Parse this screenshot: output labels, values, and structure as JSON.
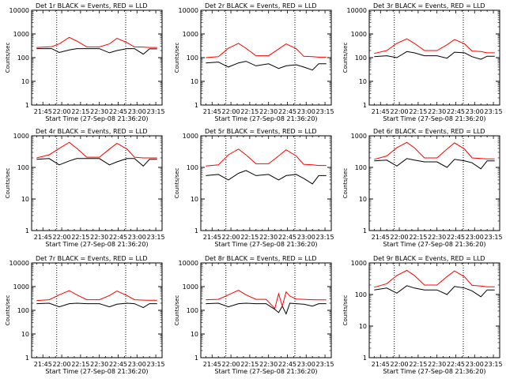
{
  "figure": {
    "panel_count": 9,
    "colors": {
      "events": "#000000",
      "lld": "#ff0000",
      "axes": "#000000",
      "background": "#ffffff"
    }
  },
  "chart_data": [
    {
      "type": "line",
      "title": "Det 1r BLACK = Events, RED = LLD",
      "xlabel": "Start Time (27-Sep-08 21:36:20)",
      "ylabel": "Counts/sec",
      "yscale": "log",
      "ylim": [
        1,
        10000
      ],
      "ytick_labels": [
        "1",
        "10",
        "100",
        "1000",
        "10000"
      ],
      "xlim": [
        "21:36",
        "23:20"
      ],
      "xtick_labels": [
        "21:45",
        "22:00",
        "22:15",
        "22:30",
        "22:45",
        "23:00",
        "23:15"
      ],
      "vlines": [
        "21:56",
        "22:51"
      ],
      "x": [
        "21:40",
        "21:52",
        "21:58",
        "22:06",
        "22:12",
        "22:20",
        "22:30",
        "22:38",
        "22:44",
        "22:52",
        "22:58",
        "23:05",
        "23:10",
        "23:16"
      ],
      "series": [
        {
          "name": "Events",
          "values": [
            240,
            240,
            165,
            210,
            240,
            240,
            240,
            160,
            200,
            240,
            240,
            140,
            235,
            235
          ]
        },
        {
          "name": "LLD",
          "values": [
            270,
            290,
            380,
            720,
            500,
            285,
            285,
            380,
            650,
            430,
            285,
            280,
            270,
            270
          ]
        }
      ]
    },
    {
      "type": "line",
      "title": "Det 2r BLACK = Events, RED = LLD",
      "xlabel": "Start Time (27-Sep-08 21:36:20)",
      "ylabel": "Counts/sec",
      "yscale": "log",
      "ylim": [
        1,
        10000
      ],
      "ytick_labels": [
        "1",
        "10",
        "100",
        "1000",
        "10000"
      ],
      "xlim": [
        "21:36",
        "23:20"
      ],
      "xtick_labels": [
        "21:45",
        "22:00",
        "22:15",
        "22:30",
        "22:45",
        "23:00",
        "23:15"
      ],
      "vlines": [
        "21:56",
        "22:51"
      ],
      "x": [
        "21:40",
        "21:50",
        "21:58",
        "22:06",
        "22:12",
        "22:20",
        "22:30",
        "22:38",
        "22:44",
        "22:52",
        "22:58",
        "23:05",
        "23:10",
        "23:16"
      ],
      "series": [
        {
          "name": "Events",
          "values": [
            60,
            65,
            40,
            60,
            70,
            45,
            55,
            35,
            45,
            50,
            40,
            30,
            55,
            55
          ]
        },
        {
          "name": "LLD",
          "values": [
            100,
            110,
            250,
            400,
            250,
            120,
            120,
            230,
            380,
            240,
            115,
            110,
            105,
            105
          ]
        }
      ]
    },
    {
      "type": "line",
      "title": "Det 3r BLACK = Events, RED = LLD",
      "xlabel": "Start Time (27-Sep-08 21:36:20)",
      "ylabel": "Counts/sec",
      "yscale": "log",
      "ylim": [
        1,
        10000
      ],
      "ytick_labels": [
        "1",
        "10",
        "100",
        "1000",
        "10000"
      ],
      "xlim": [
        "21:36",
        "23:20"
      ],
      "xtick_labels": [
        "21:45",
        "22:00",
        "22:15",
        "22:30",
        "22:45",
        "23:00",
        "23:15"
      ],
      "vlines": [
        "21:56",
        "22:51"
      ],
      "x": [
        "21:40",
        "21:50",
        "21:58",
        "22:06",
        "22:12",
        "22:20",
        "22:30",
        "22:38",
        "22:44",
        "22:52",
        "22:58",
        "23:05",
        "23:10",
        "23:16"
      ],
      "series": [
        {
          "name": "Events",
          "values": [
            110,
            120,
            100,
            180,
            160,
            120,
            120,
            95,
            170,
            160,
            110,
            85,
            115,
            115
          ]
        },
        {
          "name": "LLD",
          "values": [
            150,
            200,
            400,
            620,
            400,
            200,
            200,
            350,
            580,
            380,
            190,
            180,
            160,
            160
          ]
        }
      ]
    },
    {
      "type": "line",
      "title": "Det 4r BLACK = Events, RED = LLD",
      "xlabel": "Start Time (27-Sep-08 21:36:20)",
      "ylabel": "Counts/sec",
      "yscale": "log",
      "ylim": [
        1,
        1000
      ],
      "ytick_labels": [
        "1",
        "10",
        "100",
        "1000"
      ],
      "xlim": [
        "21:36",
        "23:20"
      ],
      "xtick_labels": [
        "21:45",
        "22:00",
        "22:15",
        "22:30",
        "22:45",
        "23:00",
        "23:15"
      ],
      "vlines": [
        "21:56",
        "22:51"
      ],
      "x": [
        "21:40",
        "21:50",
        "21:58",
        "22:06",
        "22:12",
        "22:20",
        "22:30",
        "22:38",
        "22:44",
        "22:52",
        "22:58",
        "23:05",
        "23:10",
        "23:16"
      ],
      "series": [
        {
          "name": "Events",
          "values": [
            180,
            190,
            120,
            160,
            190,
            190,
            190,
            120,
            150,
            190,
            190,
            110,
            180,
            180
          ]
        },
        {
          "name": "LLD",
          "values": [
            200,
            250,
            400,
            620,
            400,
            210,
            210,
            380,
            580,
            380,
            210,
            200,
            200,
            200
          ]
        }
      ]
    },
    {
      "type": "line",
      "title": "Det 5r BLACK = Events, RED = LLD",
      "xlabel": "Start Time (27-Sep-08 21:36:20)",
      "ylabel": "Counts/sec",
      "yscale": "log",
      "ylim": [
        1,
        1000
      ],
      "ytick_labels": [
        "1",
        "10",
        "100",
        "1000"
      ],
      "xlim": [
        "21:36",
        "23:20"
      ],
      "xtick_labels": [
        "21:45",
        "22:00",
        "22:15",
        "22:30",
        "22:45",
        "23:00",
        "23:15"
      ],
      "vlines": [
        "21:56",
        "22:51"
      ],
      "x": [
        "21:40",
        "21:50",
        "21:58",
        "22:06",
        "22:12",
        "22:20",
        "22:30",
        "22:38",
        "22:44",
        "22:52",
        "22:58",
        "23:05",
        "23:10",
        "23:16"
      ],
      "series": [
        {
          "name": "Events",
          "values": [
            55,
            60,
            40,
            65,
            80,
            55,
            60,
            40,
            55,
            60,
            45,
            30,
            55,
            55
          ]
        },
        {
          "name": "LLD",
          "values": [
            110,
            120,
            250,
            380,
            250,
            130,
            130,
            230,
            360,
            230,
            125,
            120,
            115,
            115
          ]
        }
      ]
    },
    {
      "type": "line",
      "title": "Det 6r BLACK = Events, RED = LLD",
      "xlabel": "Start Time (27-Sep-08 21:36:20)",
      "ylabel": "Counts/sec",
      "yscale": "log",
      "ylim": [
        1,
        1000
      ],
      "ytick_labels": [
        "1",
        "10",
        "100",
        "1000"
      ],
      "xlim": [
        "21:36",
        "23:20"
      ],
      "xtick_labels": [
        "21:45",
        "22:00",
        "22:15",
        "22:30",
        "22:45",
        "23:00",
        "23:15"
      ],
      "vlines": [
        "21:56",
        "22:51"
      ],
      "x": [
        "21:40",
        "21:50",
        "21:58",
        "22:06",
        "22:12",
        "22:20",
        "22:30",
        "22:38",
        "22:44",
        "22:52",
        "22:58",
        "23:05",
        "23:10",
        "23:16"
      ],
      "series": [
        {
          "name": "Events",
          "values": [
            160,
            170,
            110,
            190,
            170,
            150,
            150,
            100,
            180,
            160,
            140,
            90,
            160,
            160
          ]
        },
        {
          "name": "LLD",
          "values": [
            180,
            230,
            420,
            620,
            420,
            200,
            200,
            380,
            600,
            380,
            200,
            190,
            185,
            185
          ]
        }
      ]
    },
    {
      "type": "line",
      "title": "Det 7r BLACK = Events, RED = LLD",
      "xlabel": "Start Time (27-Sep-08 21:36:20)",
      "ylabel": "Counts/sec",
      "yscale": "log",
      "ylim": [
        1,
        10000
      ],
      "ytick_labels": [
        "1",
        "10",
        "100",
        "1000",
        "10000"
      ],
      "xlim": [
        "21:36",
        "23:20"
      ],
      "xtick_labels": [
        "21:45",
        "22:00",
        "22:15",
        "22:30",
        "22:45",
        "23:00",
        "23:15"
      ],
      "vlines": [
        "21:56",
        "22:51"
      ],
      "x": [
        "21:40",
        "21:50",
        "21:58",
        "22:06",
        "22:12",
        "22:20",
        "22:30",
        "22:38",
        "22:44",
        "22:52",
        "22:58",
        "23:05",
        "23:10",
        "23:16"
      ],
      "series": [
        {
          "name": "Events",
          "values": [
            190,
            200,
            140,
            190,
            200,
            190,
            190,
            140,
            180,
            200,
            190,
            130,
            190,
            190
          ]
        },
        {
          "name": "LLD",
          "values": [
            260,
            280,
            450,
            680,
            450,
            280,
            280,
            420,
            650,
            420,
            280,
            270,
            265,
            265
          ]
        }
      ]
    },
    {
      "type": "line",
      "title": "Det 8r BLACK = Events, RED = LLD",
      "xlabel": "Start Time (27-Sep-08 21:36:20)",
      "ylabel": "Counts/sec",
      "yscale": "log",
      "ylim": [
        1,
        10000
      ],
      "ytick_labels": [
        "1",
        "10",
        "100",
        "1000",
        "10000"
      ],
      "xlim": [
        "21:36",
        "23:20"
      ],
      "xtick_labels": [
        "21:45",
        "22:00",
        "22:15",
        "22:30",
        "22:45",
        "23:00",
        "23:15"
      ],
      "vlines": [
        "21:56",
        "22:51"
      ],
      "x": [
        "21:40",
        "21:50",
        "21:58",
        "22:06",
        "22:12",
        "22:20",
        "22:28",
        "22:35",
        "22:38",
        "22:41",
        "22:44",
        "22:47",
        "22:52",
        "22:58",
        "23:05",
        "23:10",
        "23:16"
      ],
      "series": [
        {
          "name": "Events",
          "values": [
            190,
            200,
            140,
            190,
            200,
            190,
            190,
            110,
            80,
            150,
            70,
            200,
            190,
            180,
            150,
            190,
            190
          ]
        },
        {
          "name": "LLD",
          "values": [
            280,
            290,
            450,
            700,
            450,
            290,
            290,
            120,
            500,
            150,
            600,
            400,
            300,
            290,
            280,
            275,
            275
          ]
        }
      ]
    },
    {
      "type": "line",
      "title": "Det 9r BLACK = Events, RED = LLD",
      "xlabel": "Start Time (27-Sep-08 21:36:20)",
      "ylabel": "Counts/sec",
      "yscale": "log",
      "ylim": [
        1,
        1000
      ],
      "ytick_labels": [
        "1",
        "10",
        "100",
        "1000"
      ],
      "xlim": [
        "21:36",
        "23:20"
      ],
      "xtick_labels": [
        "21:45",
        "22:00",
        "22:15",
        "22:30",
        "22:45",
        "23:00",
        "23:15"
      ],
      "vlines": [
        "21:56",
        "22:51"
      ],
      "x": [
        "21:40",
        "21:50",
        "21:58",
        "22:06",
        "22:12",
        "22:20",
        "22:30",
        "22:38",
        "22:44",
        "22:52",
        "22:58",
        "23:05",
        "23:10",
        "23:16"
      ],
      "series": [
        {
          "name": "Events",
          "values": [
            140,
            160,
            110,
            190,
            160,
            140,
            140,
            100,
            180,
            160,
            130,
            85,
            140,
            140
          ]
        },
        {
          "name": "LLD",
          "values": [
            170,
            220,
            400,
            580,
            400,
            200,
            200,
            370,
            560,
            360,
            195,
            185,
            175,
            175
          ]
        }
      ]
    }
  ]
}
